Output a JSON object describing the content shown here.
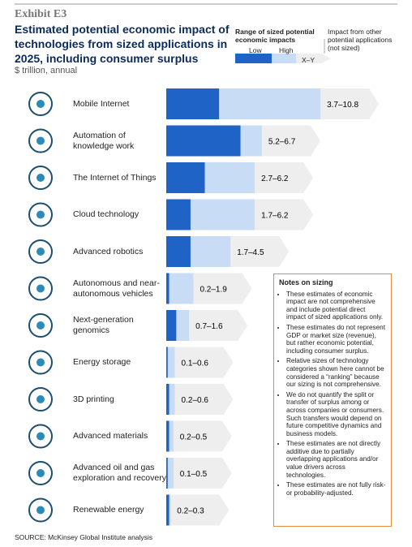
{
  "chart_data": {
    "type": "range-bar",
    "exhibit": "Exhibit E3",
    "title": "Estimated potential economic impact of technologies from sized applications in 2025, including consumer surplus",
    "subtitle": "$ trillion, annual",
    "legend": {
      "title": "Range of sized potential economic impacts",
      "range_text": "X–Y",
      "other": "Impact from other potential applications (not sized)"
    },
    "categories": [
      [
        "Mobile Internet"
      ],
      [
        "Automation of",
        "knowledge work"
      ],
      [
        "The Internet of Things"
      ],
      [
        "Cloud technology"
      ],
      [
        "Advanced robotics"
      ],
      [
        "Autonomous and near-",
        "autonomous vehicles"
      ],
      [
        "Next-generation",
        "genomics"
      ],
      [
        "Energy storage"
      ],
      [
        "3D printing"
      ],
      [
        "Advanced materials"
      ],
      [
        "Advanced oil and gas",
        "exploration and recovery"
      ],
      [
        "Renewable energy"
      ]
    ],
    "series": [
      {
        "name": "Low",
        "color": "#1f63c6",
        "values": [
          3.7,
          5.2,
          2.7,
          1.7,
          1.7,
          0.2,
          0.7,
          0.1,
          0.2,
          0.2,
          0.1,
          0.2
        ]
      },
      {
        "name": "High",
        "color": "#c9dcf5",
        "values": [
          10.8,
          6.7,
          6.2,
          6.2,
          4.5,
          1.9,
          1.6,
          0.6,
          0.6,
          0.5,
          0.5,
          0.3
        ]
      }
    ],
    "range_labels": [
      "3.7–10.8",
      "5.2–6.7",
      "2.7–6.2",
      "1.7–6.2",
      "1.7–4.5",
      "0.2–1.9",
      "0.7–1.6",
      "0.1–0.6",
      "0.2–0.6",
      "0.2–0.5",
      "0.1–0.5",
      "0.2–0.3"
    ],
    "other_color": "#eeeeee",
    "notes": {
      "title": "Notes on sizing",
      "items": [
        "These estimates of economic impact are not comprehensive and include potential direct impact of sized applications only.",
        "These estimates do not represent GDP or market size (revenue), but rather economic potential, including consumer surplus.",
        "Relative sizes of technology categories shown here cannot be considered a “ranking” because our sizing is not comprehensive.",
        "We do not quantify the split or transfer of surplus among or across companies or consumers. Such transfers would depend on future competitive dynamics and business models.",
        "These estimates are not directly additive due to partially overlapping applications and/or value drivers across technologies.",
        "These estimates are not fully risk- or probability-adjusted."
      ]
    },
    "source": "SOURCE: McKinsey Global Institute analysis"
  }
}
